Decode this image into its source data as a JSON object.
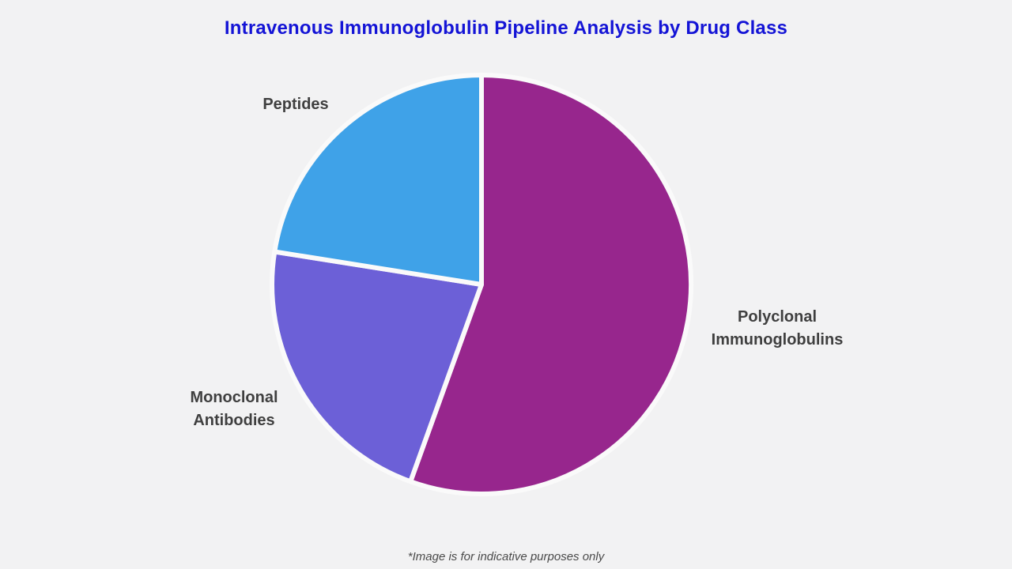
{
  "page": {
    "background_color": "#f2f2f3"
  },
  "title": {
    "text": "Intravenous Immunoglobulin Pipeline Analysis by Drug Class",
    "color": "#1414d6"
  },
  "footer": {
    "text": "*Image is for indicative purposes only"
  },
  "chart_data": {
    "type": "pie",
    "title": "Intravenous Immunoglobulin Pipeline Analysis by Drug Class",
    "slices": [
      {
        "label": "Polyclonal Immunoglobulins",
        "value_pct": 55.5,
        "color": "#97268d"
      },
      {
        "label": "Monoclonal Antibodies",
        "value_pct": 22.0,
        "color": "#6c60d7"
      },
      {
        "label": "Peptides",
        "value_pct": 22.5,
        "color": "#3fa2e8"
      }
    ],
    "start_angle_deg": 0,
    "direction": "clockwise",
    "legend": "none",
    "labels_position": "outside",
    "slice_gap_color": "#fafafa",
    "label_text_color": "#3f3f3f"
  }
}
